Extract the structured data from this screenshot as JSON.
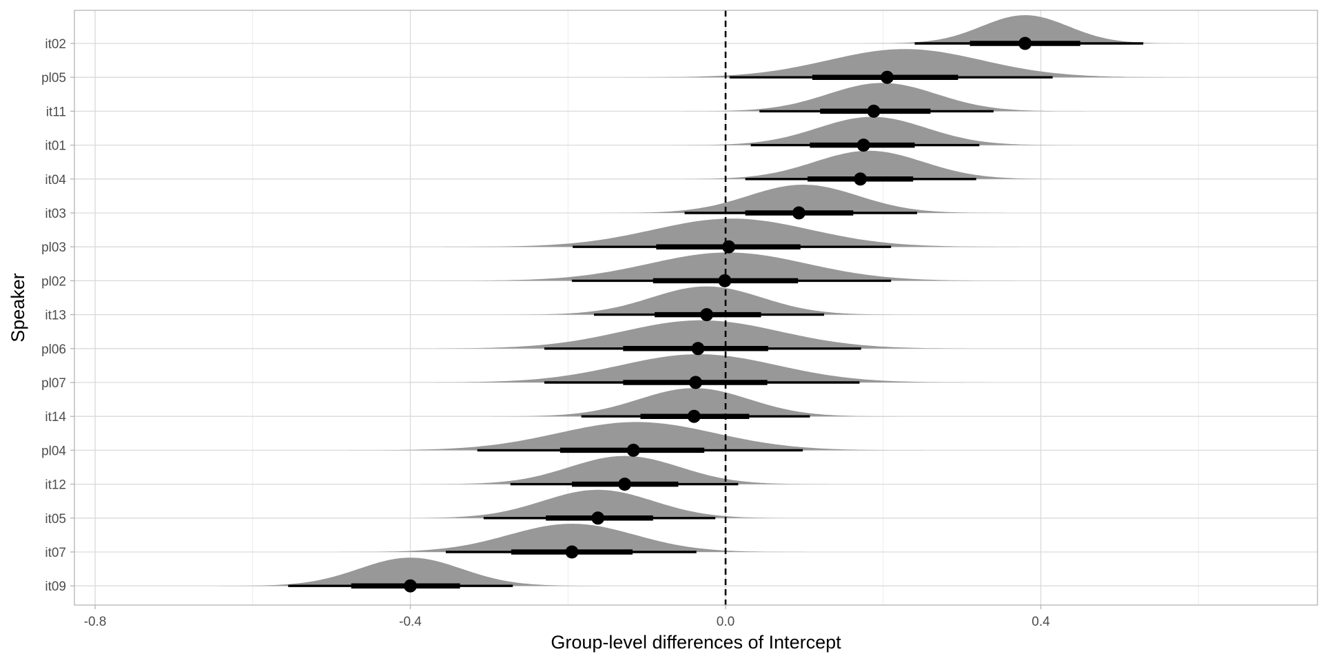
{
  "chart_data": {
    "type": "ridgeline_interval",
    "title": "",
    "xlabel": "Group-level differences of Intercept",
    "ylabel": "Speaker",
    "xlim": [
      -0.826,
      0.752
    ],
    "xticks": [
      {
        "value": -0.8,
        "label": "-0.8"
      },
      {
        "value": -0.4,
        "label": "-0.4"
      },
      {
        "value": 0.0,
        "label": "0.0"
      },
      {
        "value": 0.4,
        "label": "0.4"
      }
    ],
    "reference_line": {
      "x": 0.0,
      "style": "dashed"
    },
    "grid": true,
    "colors": {
      "density": "#989898",
      "interval": "#000000",
      "grid_major": "#d9d9d9",
      "grid_minor": "#ececec",
      "panel_border": "#b3b3b3"
    },
    "series": [
      {
        "speaker": "it02",
        "median": 0.38,
        "ci66": [
          0.31,
          0.45
        ],
        "ci95": [
          0.24,
          0.53
        ],
        "sd": 0.055,
        "skew": 0.0
      },
      {
        "speaker": "pl05",
        "median": 0.205,
        "ci66": [
          0.11,
          0.295
        ],
        "ci95": [
          0.005,
          0.415
        ],
        "sd": 0.1,
        "skew": 0.3
      },
      {
        "speaker": "it11",
        "median": 0.188,
        "ci66": [
          0.12,
          0.26
        ],
        "ci95": [
          0.043,
          0.34
        ],
        "sd": 0.07,
        "skew": 0.2
      },
      {
        "speaker": "it01",
        "median": 0.175,
        "ci66": [
          0.107,
          0.24
        ],
        "ci95": [
          0.032,
          0.322
        ],
        "sd": 0.07,
        "skew": 0.2
      },
      {
        "speaker": "it04",
        "median": 0.171,
        "ci66": [
          0.104,
          0.238
        ],
        "ci95": [
          0.025,
          0.318
        ],
        "sd": 0.07,
        "skew": 0.2
      },
      {
        "speaker": "it03",
        "median": 0.093,
        "ci66": [
          0.025,
          0.162
        ],
        "ci95": [
          -0.052,
          0.243
        ],
        "sd": 0.07,
        "skew": 0.1
      },
      {
        "speaker": "pl03",
        "median": 0.004,
        "ci66": [
          -0.088,
          0.095
        ],
        "ci95": [
          -0.194,
          0.21
        ],
        "sd": 0.1,
        "skew": 0.05
      },
      {
        "speaker": "pl02",
        "median": -0.001,
        "ci66": [
          -0.092,
          0.092
        ],
        "ci95": [
          -0.195,
          0.21
        ],
        "sd": 0.1,
        "skew": 0.05
      },
      {
        "speaker": "it13",
        "median": -0.024,
        "ci66": [
          -0.09,
          0.045
        ],
        "ci95": [
          -0.167,
          0.125
        ],
        "sd": 0.07,
        "skew": 0.0
      },
      {
        "speaker": "pl06",
        "median": -0.035,
        "ci66": [
          -0.13,
          0.054
        ],
        "ci95": [
          -0.23,
          0.172
        ],
        "sd": 0.1,
        "skew": 0.05
      },
      {
        "speaker": "pl07",
        "median": -0.038,
        "ci66": [
          -0.13,
          0.053
        ],
        "ci95": [
          -0.23,
          0.17
        ],
        "sd": 0.1,
        "skew": 0.05
      },
      {
        "speaker": "it14",
        "median": -0.04,
        "ci66": [
          -0.108,
          0.03
        ],
        "ci95": [
          -0.183,
          0.107
        ],
        "sd": 0.07,
        "skew": 0.0
      },
      {
        "speaker": "pl04",
        "median": -0.117,
        "ci66": [
          -0.21,
          -0.027
        ],
        "ci95": [
          -0.315,
          0.098
        ],
        "sd": 0.1,
        "skew": 0.05
      },
      {
        "speaker": "it12",
        "median": -0.128,
        "ci66": [
          -0.195,
          -0.06
        ],
        "ci95": [
          -0.273,
          0.016
        ],
        "sd": 0.07,
        "skew": 0.0
      },
      {
        "speaker": "it05",
        "median": -0.162,
        "ci66": [
          -0.228,
          -0.092
        ],
        "ci95": [
          -0.307,
          -0.013
        ],
        "sd": 0.07,
        "skew": 0.0
      },
      {
        "speaker": "it07",
        "median": -0.195,
        "ci66": [
          -0.272,
          -0.118
        ],
        "ci95": [
          -0.355,
          -0.037
        ],
        "sd": 0.08,
        "skew": 0.0
      },
      {
        "speaker": "it09",
        "median": -0.4,
        "ci66": [
          -0.475,
          -0.337
        ],
        "ci95": [
          -0.555,
          -0.27
        ],
        "sd": 0.065,
        "skew": 0.0
      }
    ]
  }
}
